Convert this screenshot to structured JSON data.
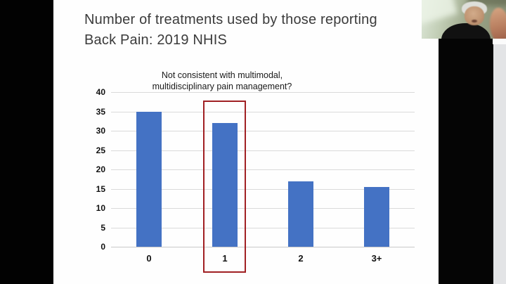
{
  "slide": {
    "title": "Number of treatments used by those reporting Back Pain: 2019 NHIS",
    "annotation": "Not consistent with multimodal,\nmultidisciplinary pain management?"
  },
  "chart_data": {
    "type": "bar",
    "categories": [
      "0",
      "1",
      "2",
      "3+"
    ],
    "values": [
      35,
      32,
      17,
      15.5
    ],
    "title": "",
    "xlabel": "",
    "ylabel": "",
    "ylim": [
      0,
      40
    ],
    "yticks": [
      0,
      5,
      10,
      15,
      20,
      25,
      30,
      35,
      40
    ],
    "grid": true,
    "legend": false,
    "bar_color": "#4472c4",
    "gridline_color": "#dadada",
    "highlight": {
      "category": "1",
      "box_color": "#a02023"
    }
  },
  "colors": {
    "letterbox": "#020202",
    "side_panel": "#050505",
    "side_panel_rail": "#e3e4e6",
    "slide_background": "#fefefe",
    "title_text": "#3b3b3b"
  }
}
